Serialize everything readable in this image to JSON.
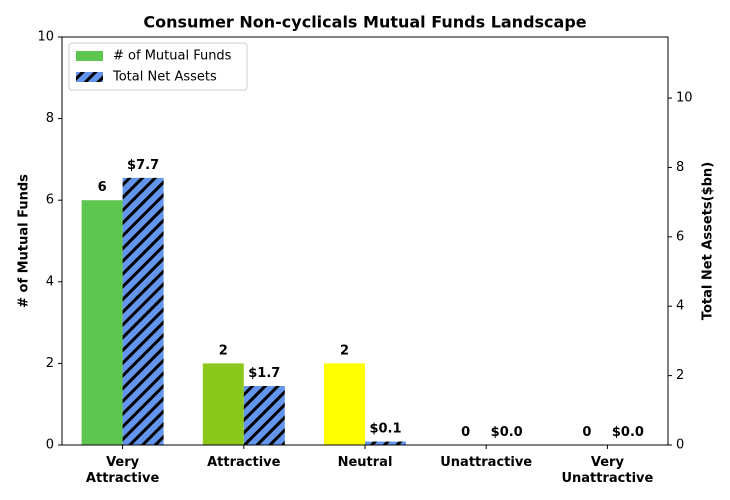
{
  "chart_data": {
    "type": "bar",
    "title": "Consumer Non-cyclicals Mutual Funds Landscape",
    "categories": [
      "Very\nAttractive",
      "Attractive",
      "Neutral",
      "Unattractive",
      "Very\nUnattractive"
    ],
    "series": [
      {
        "name": "# of Mutual Funds",
        "colors": [
          "#5dc64f",
          "#8cc71c",
          "#ffff00",
          "#ffa500",
          "#ff0000"
        ],
        "color": "#5dc64f",
        "values": [
          6,
          2,
          2,
          0,
          0
        ]
      },
      {
        "name": "Total Net Assets",
        "color": "#6495ed",
        "hatch": true,
        "axis": "y2",
        "values": [
          7.7,
          1.7,
          0.1,
          0.0,
          0.0
        ],
        "value_labels": [
          "$7.7",
          "$1.7",
          "$0.1",
          "$0.0",
          "$0.0"
        ]
      }
    ],
    "ylabel": "# of Mutual Funds",
    "y2label": "Total Net Assets($bn)",
    "ylim": [
      0,
      10
    ],
    "yticks": [
      0,
      2,
      4,
      6,
      8,
      10
    ],
    "y2lim": [
      0,
      11.76
    ],
    "y2ticks": [
      0,
      2,
      4,
      6,
      8,
      10
    ],
    "legend": "upper left"
  }
}
